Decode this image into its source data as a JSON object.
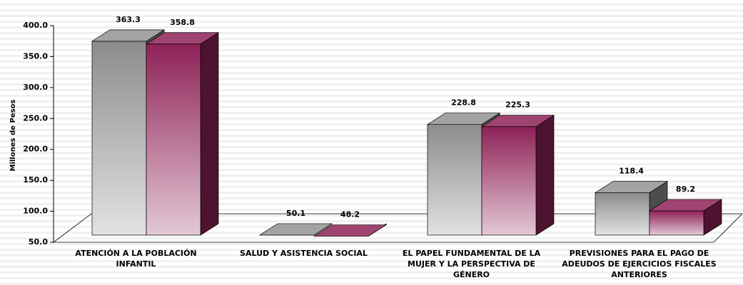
{
  "chart_data": {
    "type": "bar3d",
    "y_label": "Millones de Pesos",
    "categories": [
      "ATENCIÓN A LA POBLACIÓN INFANTIL",
      "SALUD Y ASISTENCIA SOCIAL",
      "EL PAPEL FUNDAMENTAL DE LA MUJER Y LA PERSPECTIVA DE GÉNERO",
      "PREVISIONES PARA EL PAGO DE ADEUDOS DE EJERCICIOS FISCALES ANTERIORES"
    ],
    "series": [
      {
        "color": "#8c8c8c",
        "values": [
          363.3,
          50.1,
          228.8,
          118.4
        ]
      },
      {
        "color": "#8e2257",
        "values": [
          358.8,
          48.2,
          225.3,
          89.2
        ]
      }
    ],
    "ylim": [
      50,
      400
    ],
    "yticks": [
      {
        "value": 50,
        "label": "50.0"
      },
      {
        "value": 100,
        "label": "100.0"
      },
      {
        "value": 150,
        "label": "150.0"
      },
      {
        "value": 200,
        "label": "200.0"
      },
      {
        "value": 250,
        "label": "250.0"
      },
      {
        "value": 300,
        "label": "300.0"
      },
      {
        "value": 350,
        "label": "350.0"
      },
      {
        "value": 400,
        "label": "400.0"
      }
    ]
  }
}
